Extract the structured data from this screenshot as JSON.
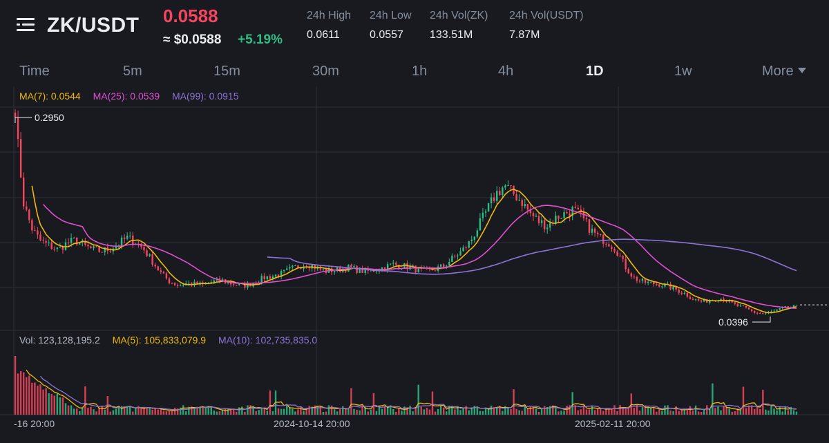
{
  "header": {
    "pair": "ZK/USDT",
    "last_price": "0.0588",
    "usd_price": "≈ $0.0588",
    "change": "+5.19%",
    "stats": [
      {
        "label": "24h High",
        "value": "0.0611"
      },
      {
        "label": "24h Low",
        "value": "0.0557"
      },
      {
        "label": "24h Vol(ZK)",
        "value": "133.51M"
      },
      {
        "label": "24h Vol(USDT)",
        "value": "7.87M"
      }
    ]
  },
  "tabs": [
    "Time",
    "5m",
    "15m",
    "30m",
    "1h",
    "4h",
    "1D",
    "1w",
    "More"
  ],
  "active_tab": "1D",
  "ma_legend": {
    "ma7": "MA(7): 0.0544",
    "ma25": "MA(25): 0.0539",
    "ma99": "MA(99): 0.0915"
  },
  "price_labels": {
    "high": "0.2950",
    "low": "0.0396"
  },
  "vol_legend": {
    "vol": "Vol: 123,128,195.2",
    "ma5": "MA(5): 105,833,079.9",
    "ma10": "MA(10): 102,735,835.0"
  },
  "x_axis": [
    "-16 20:00",
    "2024-10-14 20:00",
    "2025-02-11 20:00"
  ],
  "colors": {
    "up": "#2ebd85",
    "down": "#f6465d",
    "ma7": "#f0b90b",
    "ma25": "#e04fd1",
    "ma99": "#8e73d6",
    "background": "#181a20"
  },
  "chart_data": {
    "type": "candlestick",
    "interval": "1D",
    "y_range": [
      0.0396,
      0.295
    ],
    "close_path": [
      0.295,
      0.186,
      0.155,
      0.14,
      0.135,
      0.13,
      0.138,
      0.142,
      0.135,
      0.13,
      0.128,
      0.131,
      0.137,
      0.145,
      0.14,
      0.13,
      0.115,
      0.1,
      0.09,
      0.085,
      0.088,
      0.087,
      0.086,
      0.09,
      0.092,
      0.088,
      0.086,
      0.085,
      0.09,
      0.095,
      0.097,
      0.1,
      0.105,
      0.11,
      0.112,
      0.108,
      0.103,
      0.104,
      0.106,
      0.108,
      0.104,
      0.103,
      0.105,
      0.108,
      0.112,
      0.11,
      0.108,
      0.104,
      0.103,
      0.106,
      0.11,
      0.12,
      0.128,
      0.14,
      0.16,
      0.18,
      0.2,
      0.21,
      0.2,
      0.19,
      0.175,
      0.165,
      0.16,
      0.17,
      0.175,
      0.18,
      0.17,
      0.155,
      0.145,
      0.14,
      0.13,
      0.11,
      0.095,
      0.09,
      0.088,
      0.087,
      0.084,
      0.08,
      0.075,
      0.068,
      0.065,
      0.067,
      0.07,
      0.066,
      0.06,
      0.057,
      0.052,
      0.05,
      0.052,
      0.055,
      0.058,
      0.0588
    ]
  }
}
